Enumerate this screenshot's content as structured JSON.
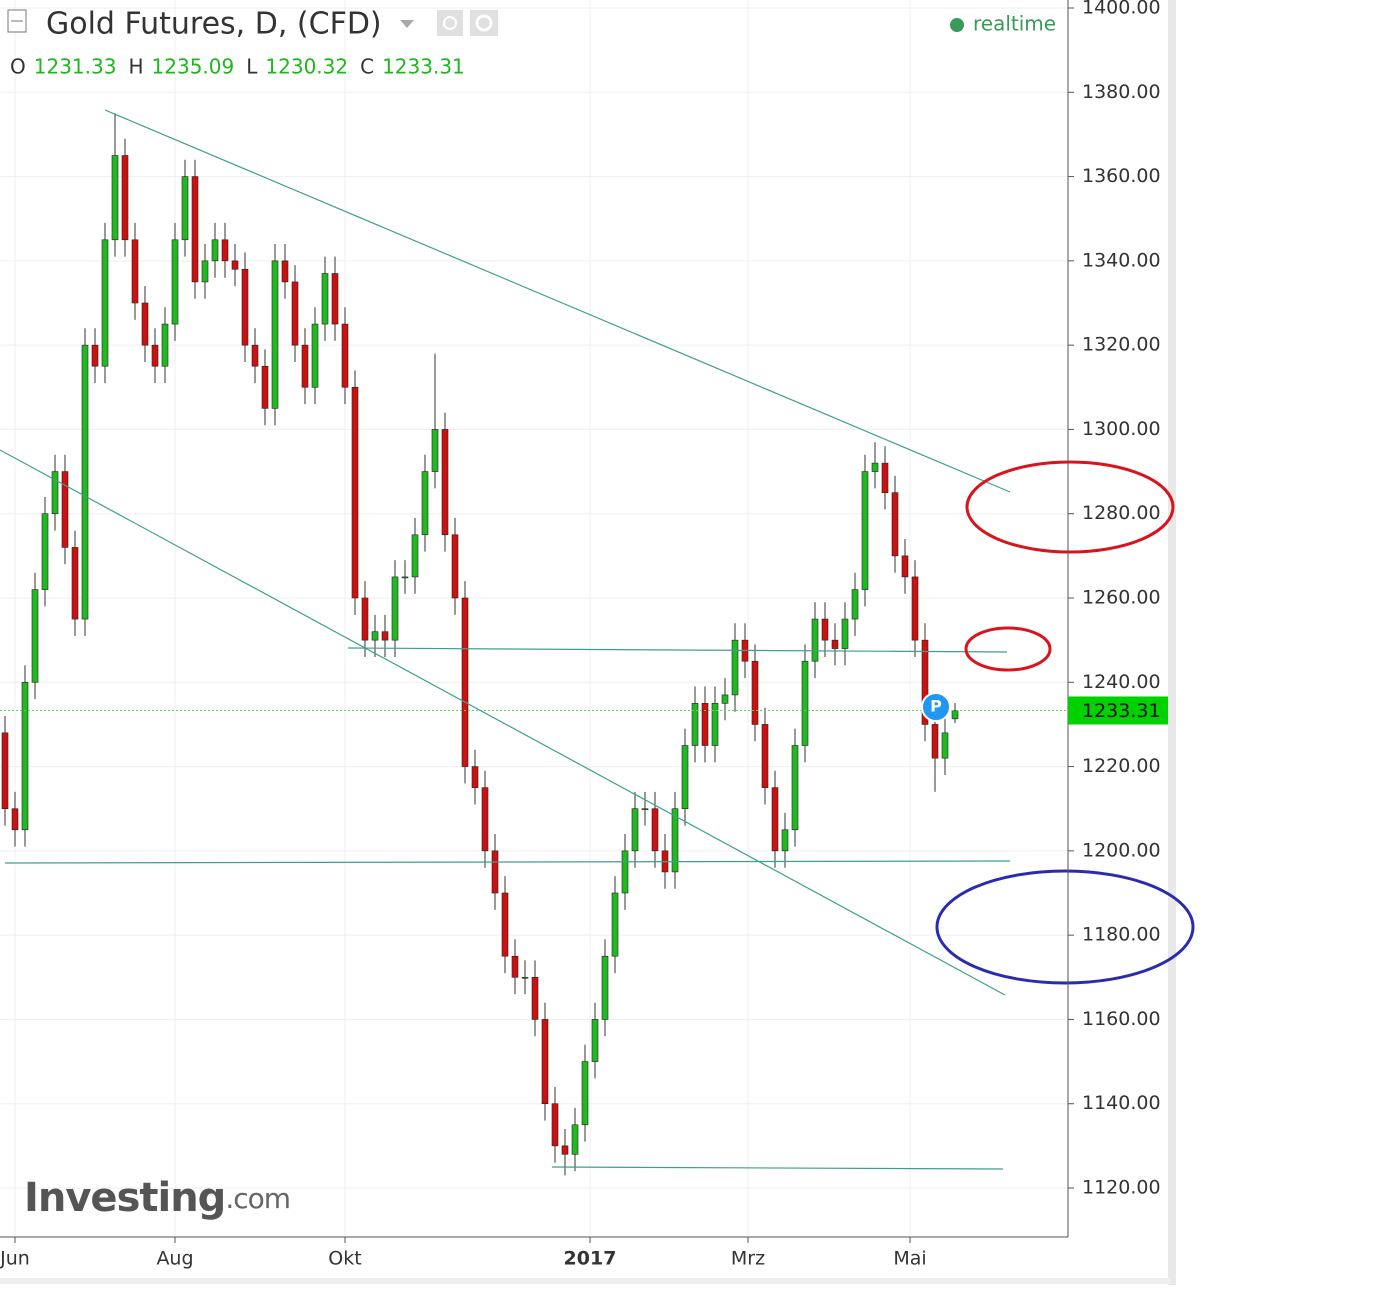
{
  "chart_data": {
    "type": "candlestick",
    "title": "Gold Futures, D, (CFD)",
    "status": "realtime",
    "header_labels": [
      "O",
      "H",
      "L",
      "C"
    ],
    "watermark": [
      "Investing",
      ".com"
    ],
    "up_color": "#22b822",
    "down_color": "#cc1111",
    "grid": true,
    "xlim": [
      -0.5,
      106.3
    ],
    "xticks": [
      {
        "value": 1,
        "label": "Jun"
      },
      {
        "value": 17,
        "label": "Aug"
      },
      {
        "value": 34,
        "label": "Okt"
      },
      {
        "value": 58.5,
        "label": "2017"
      },
      {
        "value": 74.3,
        "label": "Mrz"
      },
      {
        "value": 90.5,
        "label": "Mai"
      }
    ],
    "ylim": [
      1400,
      1120
    ],
    "yticks": [
      {
        "value": 1400,
        "label": "1400.00"
      },
      {
        "value": 1380,
        "label": "1380.00"
      },
      {
        "value": 1360,
        "label": "1360.00"
      },
      {
        "value": 1340,
        "label": "1340.00"
      },
      {
        "value": 1320,
        "label": "1320.00"
      },
      {
        "value": 1300,
        "label": "1300.00"
      },
      {
        "value": 1280,
        "label": "1280.00"
      },
      {
        "value": 1260,
        "label": "1260.00"
      },
      {
        "value": 1240,
        "label": "1240.00"
      },
      {
        "value": 1220,
        "label": "1220.00"
      },
      {
        "value": 1200,
        "label": "1200.00"
      },
      {
        "value": 1180,
        "label": "1180.00"
      },
      {
        "value": 1160,
        "label": "1160.00"
      },
      {
        "value": 1140,
        "label": "1140.00"
      },
      {
        "value": 1120,
        "label": "1120.00"
      }
    ],
    "open": [
      1228,
      1210,
      1205,
      1240,
      1262,
      1280,
      1290,
      1272,
      1255,
      1320,
      1315,
      1345,
      1365,
      1345,
      1330,
      1320,
      1315,
      1325,
      1345,
      1360,
      1335,
      1340,
      1345,
      1340,
      1338,
      1320,
      1315,
      1305,
      1340,
      1335,
      1320,
      1310,
      1325,
      1337,
      1325,
      1310,
      1260,
      1250,
      1252,
      1250,
      1265,
      1265,
      1275,
      1290,
      1300,
      1275,
      1260,
      1220,
      1215,
      1200,
      1190,
      1175,
      1170,
      1170,
      1160,
      1140,
      1130,
      1128,
      1135,
      1150,
      1160,
      1175,
      1190,
      1200,
      1210,
      1210,
      1200,
      1195,
      1210,
      1225,
      1235,
      1225,
      1235,
      1237,
      1250,
      1245,
      1230,
      1215,
      1200,
      1205,
      1225,
      1245,
      1255,
      1250,
      1248,
      1255,
      1262,
      1290,
      1292,
      1285,
      1270,
      1265,
      1250,
      1230,
      1222,
      1231.33
    ],
    "high": [
      1232,
      1214,
      1244,
      1266,
      1284,
      1294,
      1294,
      1276,
      1324,
      1324,
      1349,
      1375,
      1369,
      1349,
      1334,
      1324,
      1329,
      1349,
      1364,
      1364,
      1344,
      1349,
      1349,
      1344,
      1342,
      1324,
      1319,
      1344,
      1344,
      1339,
      1324,
      1329,
      1341,
      1341,
      1329,
      1314,
      1264,
      1256,
      1256,
      1269,
      1269,
      1279,
      1294,
      1318,
      1304,
      1279,
      1264,
      1224,
      1219,
      1204,
      1194,
      1179,
      1174,
      1174,
      1164,
      1144,
      1134,
      1139,
      1154,
      1164,
      1179,
      1194,
      1204,
      1214,
      1214,
      1214,
      1204,
      1214,
      1229,
      1239,
      1239,
      1239,
      1241,
      1254,
      1254,
      1249,
      1234,
      1219,
      1209,
      1229,
      1249,
      1259,
      1259,
      1254,
      1259,
      1266,
      1294,
      1297,
      1296,
      1289,
      1274,
      1269,
      1254,
      1234,
      1232,
      1235.09
    ],
    "low": [
      1206,
      1201,
      1201,
      1236,
      1258,
      1276,
      1268,
      1251,
      1251,
      1311,
      1311,
      1341,
      1341,
      1326,
      1316,
      1311,
      1311,
      1321,
      1341,
      1331,
      1331,
      1336,
      1336,
      1334,
      1316,
      1311,
      1301,
      1301,
      1331,
      1316,
      1306,
      1306,
      1321,
      1321,
      1306,
      1256,
      1246,
      1246,
      1246,
      1246,
      1261,
      1261,
      1271,
      1286,
      1271,
      1256,
      1216,
      1211,
      1196,
      1186,
      1171,
      1166,
      1166,
      1156,
      1136,
      1126,
      1123,
      1124,
      1131,
      1146,
      1156,
      1171,
      1186,
      1196,
      1206,
      1196,
      1191,
      1191,
      1206,
      1221,
      1221,
      1221,
      1231,
      1233,
      1241,
      1226,
      1211,
      1196,
      1196,
      1201,
      1221,
      1241,
      1246,
      1244,
      1244,
      1251,
      1258,
      1286,
      1281,
      1266,
      1261,
      1246,
      1226,
      1214,
      1218,
      1230.32
    ],
    "close": [
      1210,
      1205,
      1240,
      1262,
      1280,
      1290,
      1272,
      1255,
      1320,
      1315,
      1345,
      1365,
      1345,
      1330,
      1320,
      1315,
      1325,
      1345,
      1360,
      1335,
      1340,
      1345,
      1340,
      1338,
      1320,
      1315,
      1305,
      1340,
      1335,
      1320,
      1310,
      1325,
      1337,
      1325,
      1310,
      1260,
      1250,
      1252,
      1250,
      1265,
      1265,
      1275,
      1290,
      1300,
      1275,
      1260,
      1220,
      1215,
      1200,
      1190,
      1175,
      1170,
      1170,
      1160,
      1140,
      1130,
      1128,
      1135,
      1150,
      1160,
      1175,
      1190,
      1200,
      1210,
      1210,
      1200,
      1195,
      1210,
      1225,
      1235,
      1225,
      1235,
      1237,
      1250,
      1245,
      1230,
      1215,
      1200,
      1205,
      1225,
      1245,
      1255,
      1250,
      1248,
      1255,
      1262,
      1290,
      1292,
      1285,
      1270,
      1265,
      1250,
      1230,
      1222,
      1228,
      1233.31
    ]
  }
}
